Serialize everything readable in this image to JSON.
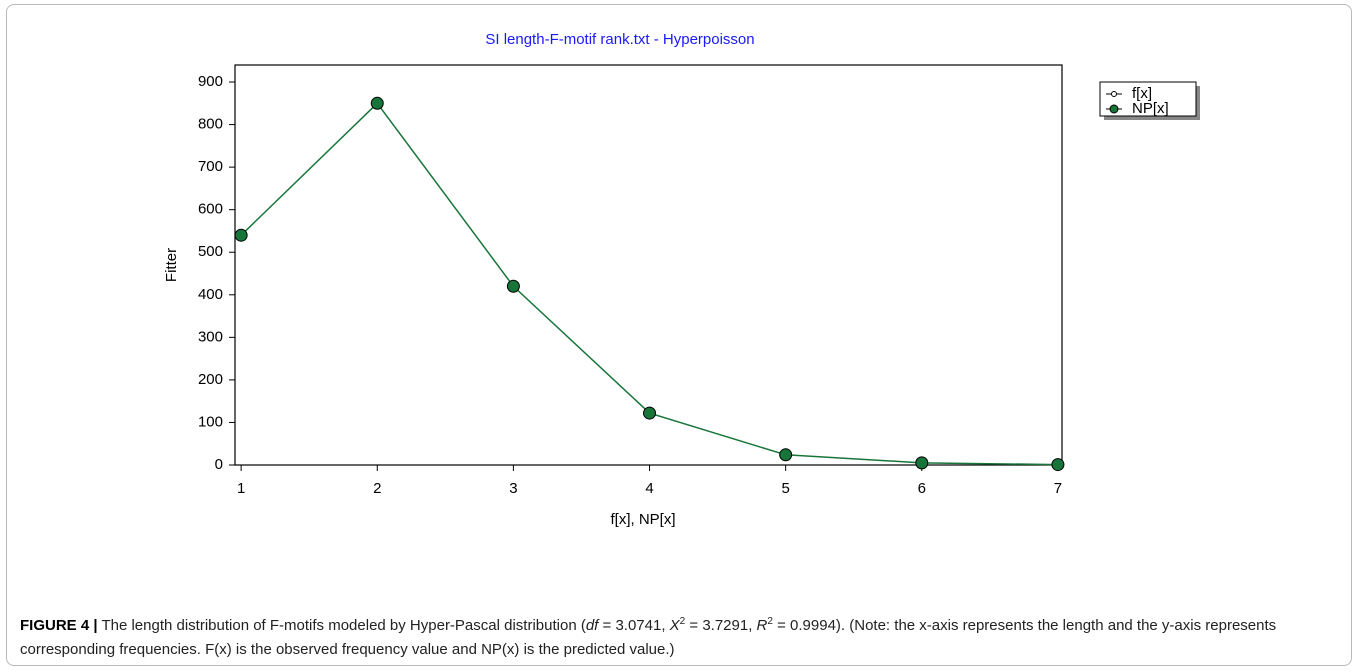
{
  "chart_data": {
    "type": "line",
    "title": "SI length-F-motif rank.txt  -  Hyperpoisson",
    "x_label": "f[x], NP[x]",
    "y_label": "Fitter",
    "x": [
      1,
      2,
      3,
      4,
      5,
      6,
      7
    ],
    "series": [
      {
        "name": "f[x]",
        "color": "#ffffff",
        "values": [
          540,
          852,
          418,
          118,
          26,
          4,
          1
        ]
      },
      {
        "name": "NP[x]",
        "color": "#17753a",
        "values": [
          540,
          850,
          420,
          122,
          24,
          5,
          1
        ]
      }
    ],
    "xlim": [
      0.955,
      7.03
    ],
    "xticks": [
      1,
      2,
      3,
      4,
      5,
      6,
      7
    ],
    "ylim": [
      0,
      940
    ],
    "yticks": [
      0,
      100,
      200,
      300,
      400,
      500,
      600,
      700,
      800,
      900
    ],
    "grid": false,
    "legend": "upper right"
  },
  "caption": {
    "label": "FIGURE 4 |",
    "parts": [
      " The length distribution of F-motifs modeled by Hyper-Pascal distribution (",
      "df",
      " = 3.0741, ",
      "X",
      "2",
      " = 3.7291, ",
      "R",
      "2",
      " = 0.9994). (Note: the x-axis represents the length and the y-axis represents corresponding frequencies. F(x) is the observed frequency value and NP(x) is the predicted value.)"
    ]
  }
}
